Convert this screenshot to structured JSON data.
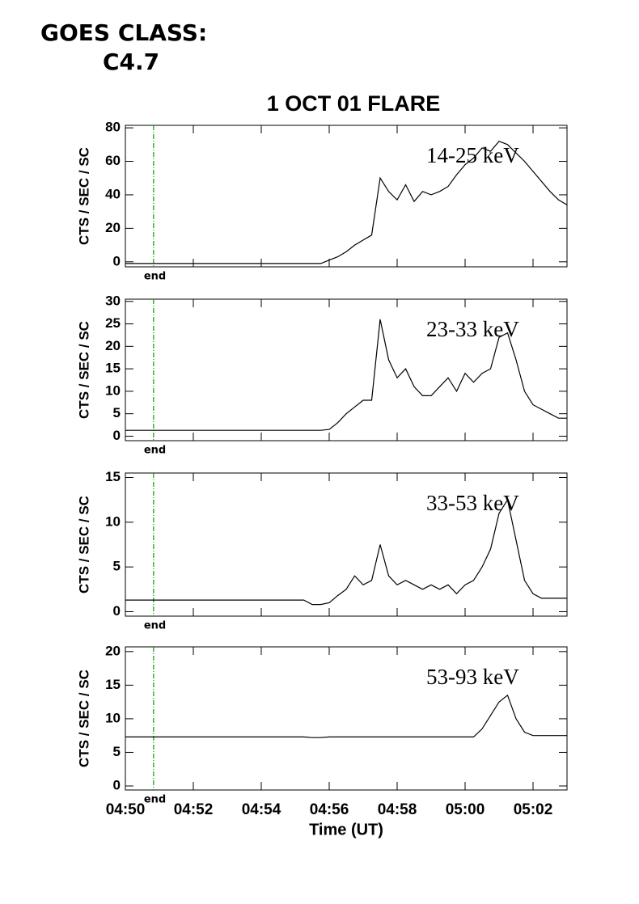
{
  "header": {
    "line1": "GOES CLASS:",
    "line2": "C4.7"
  },
  "chart_data": [
    {
      "type": "line",
      "title": "1 OCT 01 FLARE",
      "label": "14-25 keV",
      "ylabel": "CTS / SEC / SC",
      "color": "#000000",
      "x": [
        0,
        0.25,
        0.5,
        0.75,
        1,
        1.25,
        1.5,
        1.75,
        2,
        2.25,
        2.5,
        2.75,
        3,
        3.25,
        3.5,
        3.75,
        4,
        4.25,
        4.5,
        4.75,
        5,
        5.25,
        5.5,
        5.75,
        6,
        6.25,
        6.5,
        6.75,
        7,
        7.25,
        7.5,
        7.75,
        8,
        8.25,
        8.5,
        8.75,
        9,
        9.25,
        9.5,
        9.75,
        10,
        10.25,
        10.5,
        10.75,
        11,
        11.25,
        11.5,
        11.75,
        12,
        12.25,
        12.5,
        12.75,
        13
      ],
      "values": [
        -1,
        -1,
        -1,
        -1,
        -1,
        -1,
        -1,
        -1,
        -1,
        -1,
        -1,
        -1,
        -1,
        -1,
        -1,
        -1,
        -1,
        -1,
        -1,
        -1,
        -1,
        -1,
        -1,
        -1,
        1,
        3,
        6,
        10,
        13,
        16,
        50,
        42,
        37,
        46,
        36,
        42,
        40,
        42,
        45,
        52,
        58,
        62,
        68,
        66,
        72,
        70,
        65,
        60,
        54,
        48,
        42,
        37,
        34
      ],
      "xlim": [
        0,
        13
      ],
      "xticks": [
        0,
        2,
        4,
        6,
        8,
        10,
        12
      ],
      "ylim": [
        -3,
        81.5
      ],
      "yticks": [
        0,
        20,
        40,
        60,
        80
      ],
      "marker": {
        "x": 0.83,
        "color": "#00a000",
        "label": "end"
      }
    },
    {
      "type": "line",
      "label": "23-33 keV",
      "ylabel": "CTS / SEC / SC",
      "color": "#000000",
      "x": [
        0,
        0.25,
        0.5,
        0.75,
        1,
        1.25,
        1.5,
        1.75,
        2,
        2.25,
        2.5,
        2.75,
        3,
        3.25,
        3.5,
        3.75,
        4,
        4.25,
        4.5,
        4.75,
        5,
        5.25,
        5.5,
        5.75,
        6,
        6.25,
        6.5,
        6.75,
        7,
        7.25,
        7.5,
        7.75,
        8,
        8.25,
        8.5,
        8.75,
        9,
        9.25,
        9.5,
        9.75,
        10,
        10.25,
        10.5,
        10.75,
        11,
        11.25,
        11.5,
        11.75,
        12,
        12.25,
        12.5,
        12.75,
        13
      ],
      "values": [
        1.3,
        1.3,
        1.3,
        1.3,
        1.3,
        1.3,
        1.3,
        1.3,
        1.3,
        1.3,
        1.3,
        1.3,
        1.3,
        1.3,
        1.3,
        1.3,
        1.3,
        1.3,
        1.3,
        1.3,
        1.3,
        1.3,
        1.3,
        1.3,
        1.5,
        3,
        5,
        6.5,
        8,
        8,
        26,
        17,
        13,
        15,
        11,
        9,
        9,
        11,
        13,
        10,
        14,
        12,
        14,
        15,
        22,
        23,
        17,
        10,
        7,
        6,
        5,
        4,
        4
      ],
      "xlim": [
        0,
        13
      ],
      "xticks": [
        0,
        2,
        4,
        6,
        8,
        10,
        12
      ],
      "ylim": [
        -1,
        30.5
      ],
      "yticks": [
        0,
        5,
        10,
        15,
        20,
        25,
        30
      ],
      "marker": {
        "x": 0.83,
        "color": "#00a000",
        "label": "end"
      }
    },
    {
      "type": "line",
      "label": "33-53 keV",
      "ylabel": "CTS / SEC / SC",
      "color": "#000000",
      "x": [
        0,
        0.25,
        0.5,
        0.75,
        1,
        1.25,
        1.5,
        1.75,
        2,
        2.25,
        2.5,
        2.75,
        3,
        3.25,
        3.5,
        3.75,
        4,
        4.25,
        4.5,
        4.75,
        5,
        5.25,
        5.5,
        5.75,
        6,
        6.25,
        6.5,
        6.75,
        7,
        7.25,
        7.5,
        7.75,
        8,
        8.25,
        8.5,
        8.75,
        9,
        9.25,
        9.5,
        9.75,
        10,
        10.25,
        10.5,
        10.75,
        11,
        11.25,
        11.5,
        11.75,
        12,
        12.25,
        12.5,
        12.75,
        13
      ],
      "values": [
        1.3,
        1.3,
        1.3,
        1.3,
        1.3,
        1.3,
        1.3,
        1.3,
        1.3,
        1.3,
        1.3,
        1.3,
        1.3,
        1.3,
        1.3,
        1.3,
        1.3,
        1.3,
        1.3,
        1.3,
        1.3,
        1.3,
        0.8,
        0.8,
        1.0,
        1.8,
        2.5,
        4.0,
        3.0,
        3.5,
        7.5,
        4.0,
        3.0,
        3.5,
        3.0,
        2.5,
        3.0,
        2.5,
        3.0,
        2.0,
        3.0,
        3.5,
        5.0,
        7.0,
        11.0,
        12.5,
        8.0,
        3.5,
        2.0,
        1.5,
        1.5,
        1.5,
        1.5
      ],
      "xlim": [
        0,
        13
      ],
      "xticks": [
        0,
        2,
        4,
        6,
        8,
        10,
        12
      ],
      "ylim": [
        -0.5,
        15.5
      ],
      "yticks": [
        0,
        5,
        10,
        15
      ],
      "marker": {
        "x": 0.83,
        "color": "#00a000",
        "label": "end"
      }
    },
    {
      "type": "line",
      "label": "53-93 keV",
      "ylabel": "CTS / SEC / SC",
      "xlabel": "Time (UT)",
      "color": "#000000",
      "x": [
        0,
        0.25,
        0.5,
        0.75,
        1,
        1.25,
        1.5,
        1.75,
        2,
        2.25,
        2.5,
        2.75,
        3,
        3.25,
        3.5,
        3.75,
        4,
        4.25,
        4.5,
        4.75,
        5,
        5.25,
        5.5,
        5.75,
        6,
        6.25,
        6.5,
        6.75,
        7,
        7.25,
        7.5,
        7.75,
        8,
        8.25,
        8.5,
        8.75,
        9,
        9.25,
        9.5,
        9.75,
        10,
        10.25,
        10.5,
        10.75,
        11,
        11.25,
        11.5,
        11.75,
        12,
        12.25,
        12.5,
        12.75,
        13
      ],
      "values": [
        7.3,
        7.3,
        7.3,
        7.3,
        7.3,
        7.3,
        7.3,
        7.3,
        7.3,
        7.3,
        7.3,
        7.3,
        7.3,
        7.3,
        7.3,
        7.3,
        7.3,
        7.3,
        7.3,
        7.3,
        7.3,
        7.3,
        7.2,
        7.2,
        7.3,
        7.3,
        7.3,
        7.3,
        7.3,
        7.3,
        7.3,
        7.3,
        7.3,
        7.3,
        7.3,
        7.3,
        7.3,
        7.3,
        7.3,
        7.3,
        7.3,
        7.3,
        8.5,
        10.5,
        12.5,
        13.5,
        10,
        8,
        7.5,
        7.5,
        7.5,
        7.5,
        7.5
      ],
      "xlim": [
        0,
        13
      ],
      "xticks": [
        {
          "value": 0,
          "label": "04:50"
        },
        {
          "value": 2,
          "label": "04:52"
        },
        {
          "value": 4,
          "label": "04:54"
        },
        {
          "value": 6,
          "label": "04:56"
        },
        {
          "value": 8,
          "label": "04:58"
        },
        {
          "value": 10,
          "label": "05:00"
        },
        {
          "value": 12,
          "label": "05:02"
        }
      ],
      "ylim": [
        -0.6,
        20.7
      ],
      "yticks": [
        0,
        5,
        10,
        15,
        20
      ],
      "marker": {
        "x": 0.83,
        "color": "#00a000",
        "label": "end"
      }
    }
  ]
}
